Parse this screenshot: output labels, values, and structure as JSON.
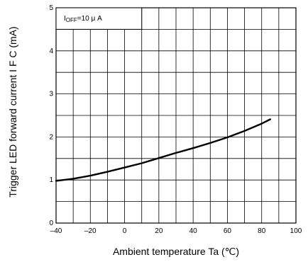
{
  "chart_data": {
    "type": "line",
    "xlabel": "Ambient temperature Ta (℃)",
    "ylabel": "Trigger LED forward current  I F C (mA)",
    "xlim": [
      -40,
      100
    ],
    "ylim": [
      0,
      5
    ],
    "x_ticks": [
      -40,
      -20,
      0,
      20,
      40,
      60,
      80,
      100
    ],
    "x_tick_labels": [
      "–40",
      "–20",
      "0",
      "20",
      "40",
      "60",
      "80",
      "100"
    ],
    "y_ticks": [
      0,
      1,
      2,
      3,
      4,
      5
    ],
    "y_tick_labels": [
      "0",
      "1",
      "2",
      "3",
      "4",
      "5"
    ],
    "grid": true,
    "annotation": {
      "prefix": "I",
      "subscript": "OFF",
      "text": "=10 μ A"
    },
    "series": [
      {
        "color": "#000000",
        "x": [
          -40,
          -30,
          -20,
          -10,
          0,
          10,
          20,
          30,
          40,
          50,
          60,
          70,
          80,
          85
        ],
        "y": [
          0.98,
          1.03,
          1.1,
          1.19,
          1.29,
          1.39,
          1.51,
          1.63,
          1.74,
          1.86,
          1.99,
          2.14,
          2.31,
          2.41
        ]
      }
    ]
  }
}
